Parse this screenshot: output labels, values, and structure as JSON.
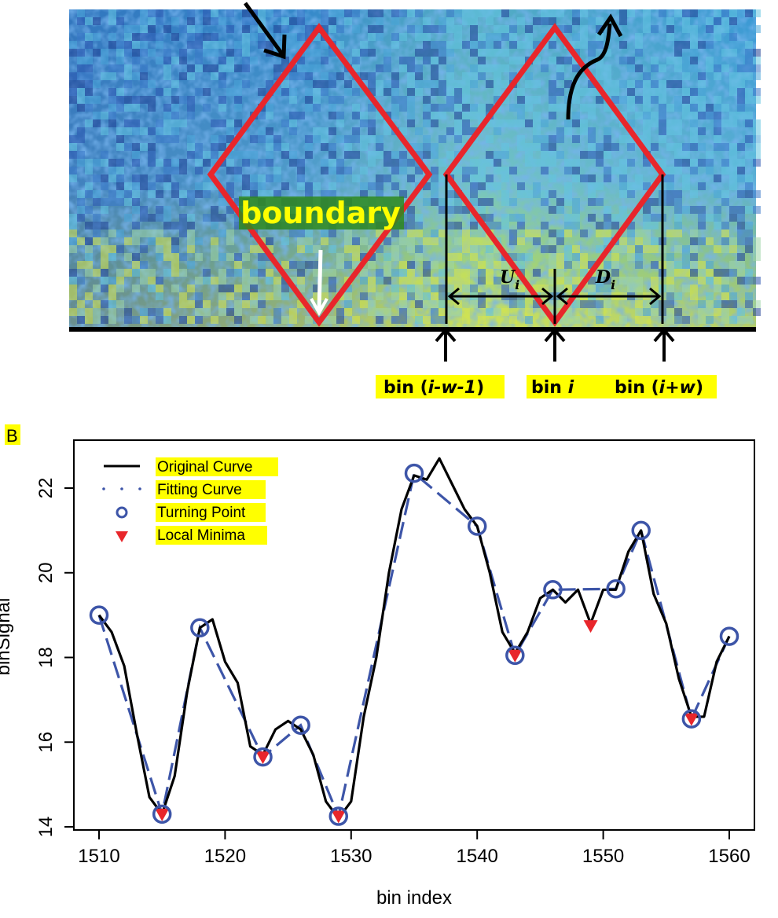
{
  "panel_a": {
    "boundary_label": "boundary",
    "U_label": "U",
    "D_label": "D",
    "sub_i": "i",
    "bin_labels": {
      "left_prefix": "bin (",
      "left_italic": "i-w-1",
      "left_suffix": ")",
      "mid_prefix": "bin ",
      "mid_italic": "i",
      "right_prefix": "bin (",
      "right_italic": "i+w",
      "right_suffix": ")"
    },
    "colors": {
      "diamond": "#e8262b",
      "highlight": "#ffff00",
      "heatmap_dark": "#2b4a9c",
      "heatmap_light": "#e6f03c"
    }
  },
  "panel_b": {
    "panel_label": "B",
    "xlabel": "bin index",
    "ylabel": "binSignal",
    "xticks": [
      "1510",
      "1520",
      "1530",
      "1540",
      "1550",
      "1560"
    ],
    "yticks": [
      "14",
      "16",
      "18",
      "20",
      "22"
    ],
    "legend": [
      {
        "label": "Original Curve",
        "icon": "solid-line-icon"
      },
      {
        "label": "Fitting Curve",
        "icon": "dotted-line-icon"
      },
      {
        "label": "Turning Point",
        "icon": "circle-marker-icon"
      },
      {
        "label": "Local Minima",
        "icon": "down-triangle-icon"
      }
    ],
    "colors": {
      "original": "#000000",
      "fitting": "#3d55a8",
      "minima": "#e8262b"
    }
  },
  "chart_data": {
    "type": "line",
    "xlabel": "bin index",
    "ylabel": "binSignal",
    "xlim": [
      1508,
      1561
    ],
    "ylim": [
      13.8,
      23
    ],
    "series": [
      {
        "name": "Original Curve",
        "style": "solid",
        "color": "#000000",
        "x": [
          1510,
          1511,
          1512,
          1513,
          1514,
          1515,
          1516,
          1517,
          1518,
          1519,
          1520,
          1521,
          1522,
          1523,
          1524,
          1525,
          1526,
          1527,
          1528,
          1529,
          1530,
          1531,
          1532,
          1533,
          1534,
          1535,
          1536,
          1537,
          1538,
          1539,
          1540,
          1541,
          1542,
          1543,
          1544,
          1545,
          1546,
          1547,
          1548,
          1549,
          1550,
          1551,
          1552,
          1553,
          1554,
          1555,
          1556,
          1557,
          1558,
          1559,
          1560
        ],
        "y": [
          19.0,
          18.6,
          17.8,
          16.2,
          14.7,
          14.3,
          15.2,
          17.2,
          18.7,
          18.9,
          17.9,
          17.4,
          15.9,
          15.7,
          16.3,
          16.5,
          16.3,
          15.7,
          14.6,
          14.2,
          14.6,
          16.6,
          18.0,
          20.0,
          21.5,
          22.3,
          22.2,
          22.7,
          22.1,
          21.5,
          21.1,
          20.0,
          18.6,
          18.1,
          18.6,
          19.4,
          19.6,
          19.3,
          19.6,
          18.8,
          19.6,
          19.6,
          20.5,
          21.0,
          19.5,
          18.8,
          17.5,
          16.6,
          16.6,
          17.9,
          18.5
        ]
      },
      {
        "name": "Fitting Curve",
        "style": "dashed",
        "color": "#3d55a8",
        "x": [
          1510,
          1515,
          1518,
          1523,
          1526,
          1529,
          1535,
          1540,
          1543,
          1546,
          1551,
          1553,
          1557,
          1560
        ],
        "y": [
          19.0,
          14.3,
          18.7,
          15.65,
          16.4,
          14.25,
          22.35,
          21.1,
          18.05,
          19.6,
          19.62,
          21.0,
          16.55,
          18.5
        ]
      },
      {
        "name": "Turning Point",
        "style": "circle",
        "color": "#3d55a8",
        "x": [
          1510,
          1515,
          1518,
          1523,
          1526,
          1529,
          1535,
          1540,
          1543,
          1546,
          1551,
          1553,
          1557,
          1560
        ],
        "y": [
          19.0,
          14.3,
          18.7,
          15.65,
          16.4,
          14.25,
          22.35,
          21.1,
          18.05,
          19.6,
          19.62,
          21.0,
          16.55,
          18.5
        ]
      },
      {
        "name": "Local Minima",
        "style": "triangle-down",
        "color": "#e8262b",
        "x": [
          1515,
          1523,
          1529,
          1543,
          1549,
          1557
        ],
        "y": [
          14.3,
          15.65,
          14.25,
          18.05,
          18.75,
          16.55
        ]
      }
    ]
  }
}
